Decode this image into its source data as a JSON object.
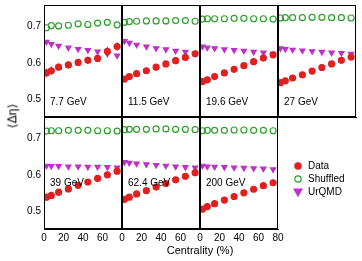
{
  "xlabel": "Centrality (%)",
  "ylabel": "⟨Δη⟩",
  "chart_data": [
    {
      "type": "scatter",
      "title": "7.7 GeV",
      "x": [
        2.5,
        7.5,
        15,
        25,
        35,
        45,
        55,
        65,
        75
      ],
      "xlim": [
        0,
        80
      ],
      "xticks": [
        0,
        20,
        40,
        60
      ],
      "ylim": [
        0.45,
        0.76
      ],
      "yticks": [
        0.5,
        0.6,
        0.7
      ],
      "tick_labels": "y",
      "series": [
        {
          "name": "Data",
          "color": "#e02020",
          "marker": "circle",
          "values": [
            0.572,
            0.578,
            0.588,
            0.594,
            0.601,
            0.607,
            0.612,
            0.632,
            0.645
          ],
          "errors": [
            0.012,
            0.012,
            0.01,
            0.01,
            0.01,
            0.01,
            0.01,
            0.012,
            0.012
          ]
        },
        {
          "name": "Shuffled",
          "color": "#2ca02c",
          "marker": "open_circle",
          "values": [
            0.697,
            0.703,
            0.702,
            0.704,
            0.708,
            0.706,
            0.71,
            0.712,
            0.705
          ]
        },
        {
          "name": "UrQMD",
          "color": "#c030c8",
          "marker": "triangle_down",
          "values": [
            0.658,
            0.652,
            0.647,
            0.642,
            0.638,
            0.635,
            0.631,
            0.625,
            0.62
          ]
        }
      ]
    },
    {
      "type": "scatter",
      "title": "11.5 GeV",
      "x": [
        2.5,
        7.5,
        15,
        25,
        35,
        45,
        55,
        65,
        75
      ],
      "xlim": [
        0,
        80
      ],
      "xticks": [
        0,
        20,
        40,
        60
      ],
      "ylim": [
        0.45,
        0.76
      ],
      "yticks": [
        0.5,
        0.6,
        0.7
      ],
      "tick_labels": false,
      "series": [
        {
          "name": "Data",
          "color": "#e02020",
          "marker": "circle",
          "values": [
            0.555,
            0.562,
            0.57,
            0.578,
            0.588,
            0.597,
            0.606,
            0.615,
            0.625
          ],
          "errors": [
            0.006,
            0.006,
            0.005,
            0.005,
            0.005,
            0.005,
            0.005,
            0.006,
            0.006
          ]
        },
        {
          "name": "Shuffled",
          "color": "#2ca02c",
          "marker": "open_circle",
          "values": [
            0.712,
            0.714,
            0.715,
            0.716,
            0.716,
            0.716,
            0.717,
            0.717,
            0.715
          ]
        },
        {
          "name": "UrQMD",
          "color": "#c030c8",
          "marker": "triangle_down",
          "values": [
            0.66,
            0.655,
            0.65,
            0.645,
            0.64,
            0.637,
            0.633,
            0.63,
            0.625
          ]
        }
      ]
    },
    {
      "type": "scatter",
      "title": "19.6 GeV",
      "x": [
        2.5,
        7.5,
        15,
        25,
        35,
        45,
        55,
        65,
        75
      ],
      "xlim": [
        0,
        80
      ],
      "xticks": [
        0,
        20,
        40,
        60
      ],
      "ylim": [
        0.45,
        0.76
      ],
      "yticks": [
        0.5,
        0.6,
        0.7
      ],
      "tick_labels": false,
      "series": [
        {
          "name": "Data",
          "color": "#e02020",
          "marker": "circle",
          "values": [
            0.548,
            0.553,
            0.562,
            0.572,
            0.582,
            0.592,
            0.603,
            0.613,
            0.622
          ],
          "errors": [
            0.004,
            0.004,
            0.004,
            0.004,
            0.004,
            0.004,
            0.004,
            0.004,
            0.004
          ]
        },
        {
          "name": "Shuffled",
          "color": "#2ca02c",
          "marker": "open_circle",
          "values": [
            0.721,
            0.722,
            0.722,
            0.722,
            0.723,
            0.723,
            0.722,
            0.722,
            0.721
          ]
        },
        {
          "name": "UrQMD",
          "color": "#c030c8",
          "marker": "triangle_down",
          "values": [
            0.645,
            0.642,
            0.64,
            0.637,
            0.635,
            0.633,
            0.63,
            0.628,
            0.625
          ]
        }
      ]
    },
    {
      "type": "scatter",
      "title": "27 GeV",
      "x": [
        2.5,
        7.5,
        15,
        25,
        35,
        45,
        55,
        65,
        75
      ],
      "xlim": [
        0,
        80
      ],
      "xticks": [
        0,
        20,
        40,
        60
      ],
      "ylim": [
        0.45,
        0.76
      ],
      "yticks": [
        0.5,
        0.6,
        0.7
      ],
      "tick_labels": false,
      "series": [
        {
          "name": "Data",
          "color": "#e02020",
          "marker": "circle",
          "values": [
            0.545,
            0.55,
            0.558,
            0.567,
            0.577,
            0.587,
            0.597,
            0.607,
            0.616
          ],
          "errors": [
            0.003,
            0.003,
            0.003,
            0.003,
            0.003,
            0.003,
            0.003,
            0.003,
            0.003
          ]
        },
        {
          "name": "Shuffled",
          "color": "#2ca02c",
          "marker": "open_circle",
          "values": [
            0.724,
            0.725,
            0.725,
            0.725,
            0.726,
            0.726,
            0.725,
            0.725,
            0.724
          ]
        },
        {
          "name": "UrQMD",
          "color": "#c030c8",
          "marker": "triangle_down",
          "values": [
            0.64,
            0.638,
            0.636,
            0.634,
            0.632,
            0.63,
            0.628,
            0.627,
            0.625
          ]
        }
      ]
    },
    {
      "type": "scatter",
      "title": "39 GeV",
      "x": [
        2.5,
        7.5,
        15,
        25,
        35,
        45,
        55,
        65,
        75
      ],
      "xlim": [
        0,
        80
      ],
      "xticks": [
        0,
        20,
        40,
        60
      ],
      "ylim": [
        0.45,
        0.76
      ],
      "yticks": [
        0.5,
        0.6,
        0.7
      ],
      "tick_labels": true,
      "series": [
        {
          "name": "Data",
          "color": "#e02020",
          "marker": "circle",
          "values": [
            0.538,
            0.543,
            0.552,
            0.561,
            0.571,
            0.58,
            0.59,
            0.6,
            0.61
          ],
          "errors": [
            0.003,
            0.003,
            0.003,
            0.003,
            0.003,
            0.003,
            0.003,
            0.003,
            0.003
          ]
        },
        {
          "name": "Shuffled",
          "color": "#2ca02c",
          "marker": "open_circle",
          "values": [
            0.721,
            0.722,
            0.722,
            0.723,
            0.723,
            0.723,
            0.722,
            0.722,
            0.721
          ]
        },
        {
          "name": "UrQMD",
          "color": "#c030c8",
          "marker": "triangle_down",
          "values": [
            0.625,
            0.624,
            0.624,
            0.623,
            0.623,
            0.622,
            0.622,
            0.621,
            0.62
          ]
        }
      ]
    },
    {
      "type": "scatter",
      "title": "62.4 GeV",
      "x": [
        2.5,
        7.5,
        15,
        25,
        35,
        45,
        55,
        65,
        75
      ],
      "xlim": [
        0,
        80
      ],
      "xticks": [
        0,
        20,
        40,
        60
      ],
      "ylim": [
        0.45,
        0.76
      ],
      "yticks": [
        0.5,
        0.6,
        0.7
      ],
      "tick_labels": "x",
      "series": [
        {
          "name": "Data",
          "color": "#e02020",
          "marker": "circle",
          "values": [
            0.532,
            0.538,
            0.547,
            0.556,
            0.566,
            0.576,
            0.586,
            0.596,
            0.606
          ],
          "errors": [
            0.003,
            0.003,
            0.003,
            0.003,
            0.003,
            0.003,
            0.003,
            0.003,
            0.003
          ]
        },
        {
          "name": "Shuffled",
          "color": "#2ca02c",
          "marker": "open_circle",
          "values": [
            0.725,
            0.726,
            0.726,
            0.726,
            0.727,
            0.727,
            0.726,
            0.726,
            0.725
          ]
        },
        {
          "name": "UrQMD",
          "color": "#c030c8",
          "marker": "triangle_down",
          "values": [
            0.635,
            0.633,
            0.631,
            0.629,
            0.627,
            0.625,
            0.623,
            0.621,
            0.62
          ]
        }
      ]
    },
    {
      "type": "scatter",
      "title": "200 GeV",
      "x": [
        2.5,
        7.5,
        15,
        25,
        35,
        45,
        55,
        65,
        75
      ],
      "xlim": [
        0,
        80
      ],
      "xticks": [
        0,
        20,
        40,
        60,
        80
      ],
      "ylim": [
        0.45,
        0.76
      ],
      "yticks": [
        0.5,
        0.6,
        0.7
      ],
      "tick_labels": "x",
      "series": [
        {
          "name": "Data",
          "color": "#e02020",
          "marker": "circle",
          "values": [
            0.505,
            0.512,
            0.52,
            0.53,
            0.54,
            0.55,
            0.56,
            0.57,
            0.578
          ],
          "errors": [
            0.003,
            0.003,
            0.003,
            0.003,
            0.003,
            0.003,
            0.003,
            0.003,
            0.003
          ]
        },
        {
          "name": "Shuffled",
          "color": "#2ca02c",
          "marker": "open_circle",
          "values": [
            0.722,
            0.723,
            0.723,
            0.723,
            0.724,
            0.724,
            0.723,
            0.723,
            0.722
          ]
        },
        {
          "name": "UrQMD",
          "color": "#c030c8",
          "marker": "triangle_down",
          "values": [
            0.625,
            0.623,
            0.622,
            0.621,
            0.62,
            0.619,
            0.618,
            0.617,
            0.615
          ]
        }
      ]
    }
  ]
}
